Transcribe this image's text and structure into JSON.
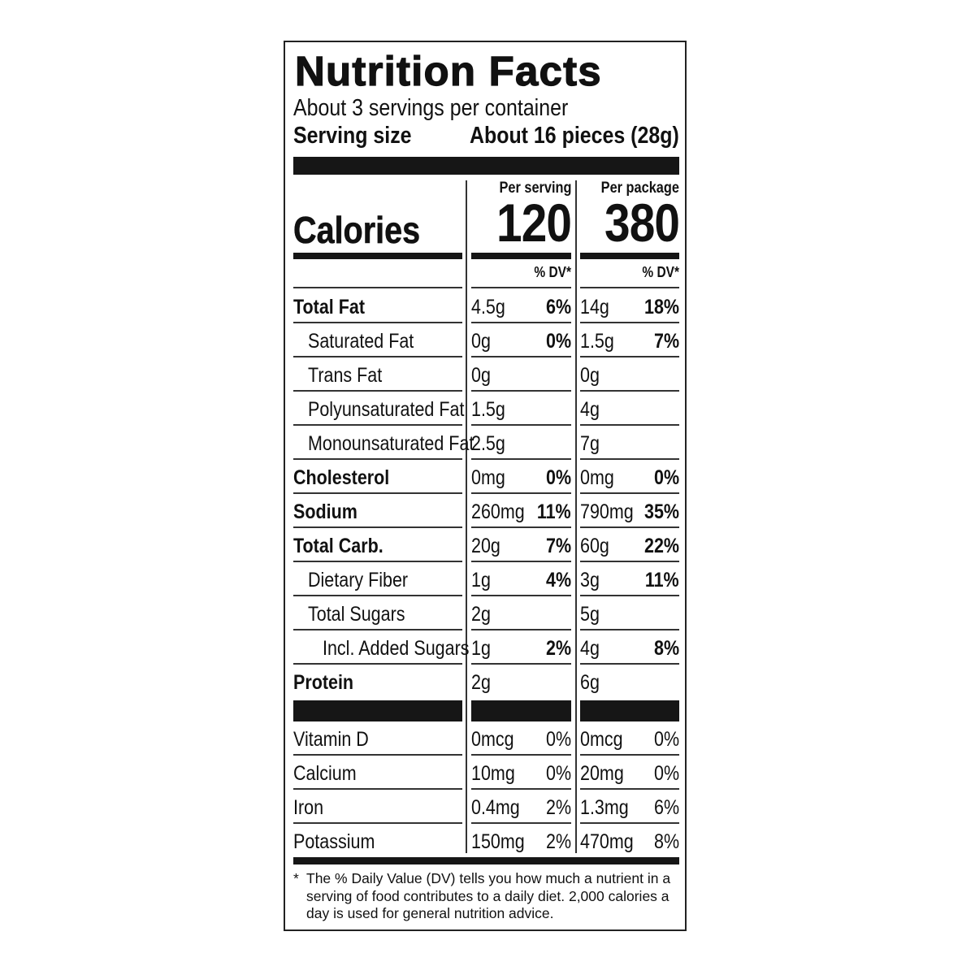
{
  "label": {
    "title": "Nutrition Facts",
    "servings_per_container": "About 3 servings per container",
    "serving_size_label": "Serving size",
    "serving_size_value": "About 16 pieces (28g)",
    "calories_label": "Calories",
    "columns": [
      {
        "header": "Per serving",
        "calories": "120",
        "dv_header": "% DV*"
      },
      {
        "header": "Per package",
        "calories": "380",
        "dv_header": "% DV*"
      }
    ],
    "nutrients": [
      {
        "name": "Total Fat",
        "bold": true,
        "indent": 0,
        "serving": {
          "amount": "4.5g",
          "dv": "6%"
        },
        "package": {
          "amount": "14g",
          "dv": "18%"
        }
      },
      {
        "name": "Saturated Fat",
        "bold": false,
        "indent": 1,
        "serving": {
          "amount": "0g",
          "dv": "0%"
        },
        "package": {
          "amount": "1.5g",
          "dv": "7%"
        }
      },
      {
        "name": "Trans Fat",
        "bold": false,
        "indent": 1,
        "serving": {
          "amount": "0g",
          "dv": ""
        },
        "package": {
          "amount": "0g",
          "dv": ""
        }
      },
      {
        "name": "Polyunsaturated Fat",
        "bold": false,
        "indent": 1,
        "serving": {
          "amount": "1.5g",
          "dv": ""
        },
        "package": {
          "amount": "4g",
          "dv": ""
        }
      },
      {
        "name": "Monounsaturated Fat",
        "bold": false,
        "indent": 1,
        "serving": {
          "amount": "2.5g",
          "dv": ""
        },
        "package": {
          "amount": "7g",
          "dv": ""
        }
      },
      {
        "name": "Cholesterol",
        "bold": true,
        "indent": 0,
        "serving": {
          "amount": "0mg",
          "dv": "0%"
        },
        "package": {
          "amount": "0mg",
          "dv": "0%"
        }
      },
      {
        "name": "Sodium",
        "bold": true,
        "indent": 0,
        "serving": {
          "amount": "260mg",
          "dv": "11%"
        },
        "package": {
          "amount": "790mg",
          "dv": "35%"
        }
      },
      {
        "name": "Total Carb.",
        "bold": true,
        "indent": 0,
        "serving": {
          "amount": "20g",
          "dv": "7%"
        },
        "package": {
          "amount": "60g",
          "dv": "22%"
        }
      },
      {
        "name": "Dietary Fiber",
        "bold": false,
        "indent": 1,
        "serving": {
          "amount": "1g",
          "dv": "4%"
        },
        "package": {
          "amount": "3g",
          "dv": "11%"
        }
      },
      {
        "name": "Total Sugars",
        "bold": false,
        "indent": 1,
        "serving": {
          "amount": "2g",
          "dv": ""
        },
        "package": {
          "amount": "5g",
          "dv": ""
        }
      },
      {
        "name": "Incl. Added Sugars",
        "bold": false,
        "indent": 2,
        "serving": {
          "amount": "1g",
          "dv": "2%"
        },
        "package": {
          "amount": "4g",
          "dv": "8%"
        }
      },
      {
        "name": "Protein",
        "bold": true,
        "indent": 0,
        "serving": {
          "amount": "2g",
          "dv": ""
        },
        "package": {
          "amount": "6g",
          "dv": ""
        }
      }
    ],
    "vitamins": [
      {
        "name": "Vitamin D",
        "serving": {
          "amount": "0mcg",
          "dv": "0%"
        },
        "package": {
          "amount": "0mcg",
          "dv": "0%"
        }
      },
      {
        "name": "Calcium",
        "serving": {
          "amount": "10mg",
          "dv": "0%"
        },
        "package": {
          "amount": "20mg",
          "dv": "0%"
        }
      },
      {
        "name": "Iron",
        "serving": {
          "amount": "0.4mg",
          "dv": "2%"
        },
        "package": {
          "amount": "1.3mg",
          "dv": "6%"
        }
      },
      {
        "name": "Potassium",
        "serving": {
          "amount": "150mg",
          "dv": "2%"
        },
        "package": {
          "amount": "470mg",
          "dv": "8%"
        }
      }
    ],
    "footnote_star": "*",
    "footnote": "The % Daily Value (DV) tells you how much a nutrient in a serving of food contributes to a daily diet. 2,000 calories a day is used for general nutrition advice."
  }
}
